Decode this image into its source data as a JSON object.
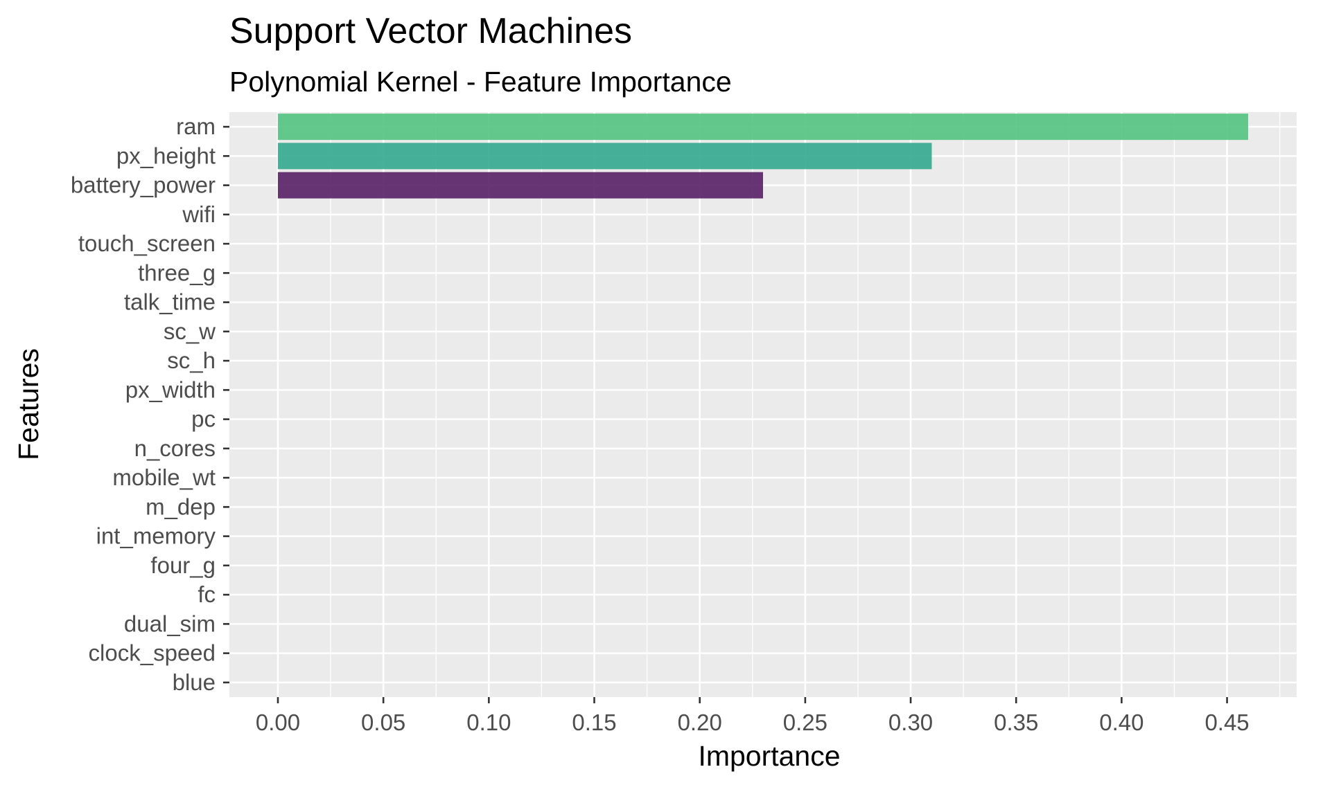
{
  "chart_data": {
    "type": "bar",
    "orientation": "horizontal",
    "title": "Support Vector Machines",
    "subtitle": "Polynomial Kernel - Feature Importance",
    "xlabel": "Importance",
    "ylabel": "Features",
    "categories": [
      "ram",
      "px_height",
      "battery_power",
      "wifi",
      "touch_screen",
      "three_g",
      "talk_time",
      "sc_w",
      "sc_h",
      "px_width",
      "pc",
      "n_cores",
      "mobile_wt",
      "m_dep",
      "int_memory",
      "four_g",
      "fc",
      "dual_sim",
      "clock_speed",
      "blue"
    ],
    "values": [
      0.46,
      0.31,
      0.23,
      0,
      0,
      0,
      0,
      0,
      0,
      0,
      0,
      0,
      0,
      0,
      0,
      0,
      0,
      0,
      0,
      0
    ],
    "bar_colors": [
      "#4fc17c",
      "#2fa68c",
      "#531a62"
    ],
    "xlim": [
      -0.023,
      0.483
    ],
    "xticks": [
      0.0,
      0.05,
      0.1,
      0.15,
      0.2,
      0.25,
      0.3,
      0.35,
      0.4,
      0.45
    ],
    "xtick_labels": [
      "0.00",
      "0.05",
      "0.10",
      "0.15",
      "0.20",
      "0.25",
      "0.30",
      "0.35",
      "0.40",
      "0.45"
    ],
    "grid": true,
    "panel_background": "#ebebeb",
    "legend": "none"
  }
}
